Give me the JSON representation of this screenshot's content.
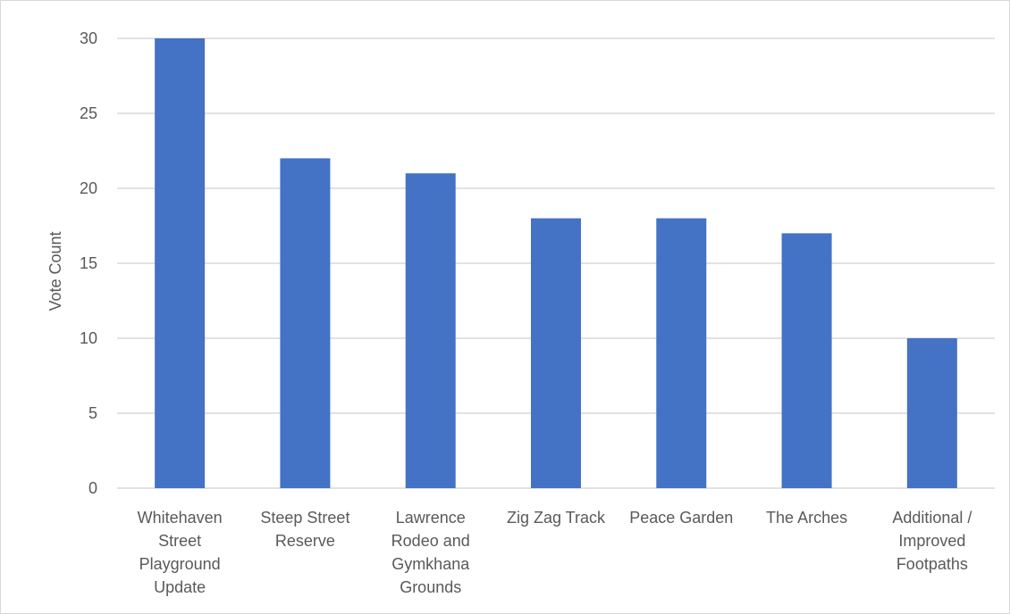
{
  "chart_data": {
    "type": "bar",
    "title": "",
    "xlabel": "",
    "ylabel": "Vote Count",
    "categories": [
      "Whitehaven Street Playground Update",
      "Steep Street Reserve",
      "Lawrence Rodeo and Gymkhana Grounds",
      "Zig Zag Track",
      "Peace Garden",
      "The Arches",
      "Additional / Improved Footpaths"
    ],
    "category_lines": [
      [
        "Whitehaven",
        "Street",
        "Playground",
        "Update"
      ],
      [
        "Steep Street",
        "Reserve"
      ],
      [
        "Lawrence",
        "Rodeo and",
        "Gymkhana",
        "Grounds"
      ],
      [
        "Zig Zag Track"
      ],
      [
        "Peace Garden"
      ],
      [
        "The Arches"
      ],
      [
        "Additional /",
        "Improved",
        "Footpaths"
      ]
    ],
    "values": [
      30,
      22,
      21,
      18,
      18,
      17,
      10
    ],
    "ylim": [
      0,
      30
    ],
    "yticks": [
      0,
      5,
      10,
      15,
      20,
      25,
      30
    ],
    "grid": true,
    "legend": "none",
    "bar_color": "#4472c4",
    "grid_color": "#d9d9d9",
    "text_color": "#595959"
  }
}
